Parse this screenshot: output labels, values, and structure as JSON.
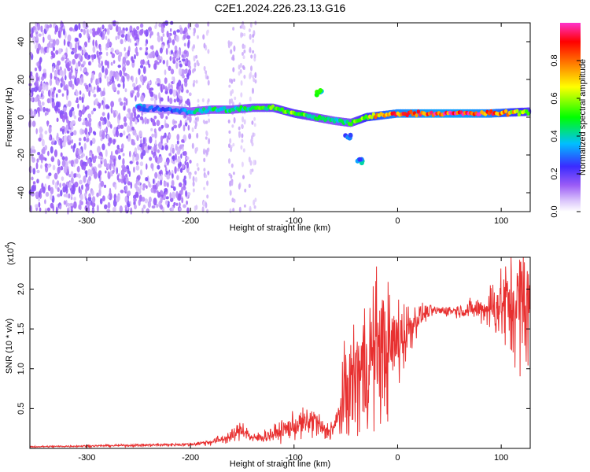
{
  "title": "C2E1.2024.226.23.13.G16",
  "chart_data": [
    {
      "type": "heatmap",
      "xlabel": "Height of straight line (km)",
      "ylabel": "Frequency (Hz)",
      "xlim": [
        -355,
        128
      ],
      "ylim": [
        -50,
        50
      ],
      "x_ticks": [
        -300,
        -200,
        -100,
        0,
        100
      ],
      "y_ticks": [
        -40,
        -20,
        0,
        20,
        40
      ],
      "x_tick_labels": [
        "-300",
        "-200",
        "-100",
        "0",
        "100"
      ],
      "y_tick_labels": [
        "-40",
        "-20",
        "0",
        "20",
        "40"
      ],
      "colorbar": {
        "label": "Normalized spectral amplitude",
        "range": [
          0,
          1
        ],
        "ticks": [
          0.0,
          0.2,
          0.4,
          0.6,
          0.8
        ],
        "tick_labels": [
          "0.0",
          "0.2",
          "0.4",
          "0.6",
          "0.8"
        ],
        "colors": [
          "#ffffff",
          "#9b5cf6",
          "#3a2bff",
          "#00bfff",
          "#00ff00",
          "#ffff00",
          "#ff8000",
          "#ff0000",
          "#ff33cc"
        ]
      },
      "ridge": {
        "x": [
          -250,
          -220,
          -200,
          -180,
          -160,
          -140,
          -120,
          -100,
          -80,
          -60,
          -45,
          -30,
          0,
          30,
          60,
          90,
          128
        ],
        "freq": [
          5,
          4,
          3,
          4,
          4,
          5,
          5,
          2,
          0,
          -2,
          -3,
          0,
          2,
          2,
          2,
          2,
          3
        ],
        "amplitude": [
          0.35,
          0.3,
          0.4,
          0.45,
          0.45,
          0.5,
          0.55,
          0.6,
          0.5,
          0.45,
          0.5,
          0.7,
          0.9,
          0.95,
          0.95,
          0.9,
          0.6
        ]
      },
      "features": [
        {
          "x": -248,
          "freq": 5,
          "amplitude": 0.35
        },
        {
          "x": -75,
          "freq": 13,
          "amplitude": 0.5
        },
        {
          "x": -48,
          "freq": -10,
          "amplitude": 0.35
        },
        {
          "x": -37,
          "freq": -23,
          "amplitude": 0.4
        }
      ],
      "noise_region": {
        "x": [
          -355,
          -200
        ],
        "freq": [
          -50,
          50
        ]
      }
    },
    {
      "type": "line",
      "xlabel": "Height of straight line (km)",
      "ylabel": "SNR (10 * v/v)",
      "multiplier_label": "(x10",
      "multiplier_exp": "4",
      "multiplier_close": ")",
      "xlim": [
        -355,
        128
      ],
      "ylim": [
        0,
        24000
      ],
      "x_ticks": [
        -300,
        -200,
        -100,
        0,
        100
      ],
      "y_ticks": [
        5000,
        10000,
        15000,
        20000
      ],
      "x_tick_labels": [
        "-300",
        "-200",
        "-100",
        "0",
        "100"
      ],
      "y_tick_labels": [
        "0.5",
        "1.0",
        "1.5",
        "2.0"
      ],
      "series": [
        {
          "color": "#e83030",
          "x": [
            -355,
            -300,
            -250,
            -200,
            -180,
            -160,
            -150,
            -140,
            -120,
            -100,
            -80,
            -70,
            -60,
            -50,
            -40,
            -30,
            -20,
            -10,
            0,
            20,
            30,
            40,
            60,
            80,
            100,
            110,
            128
          ],
          "y": [
            200,
            300,
            400,
            500,
            800,
            1500,
            2500,
            1200,
            1800,
            2800,
            3500,
            2000,
            2800,
            7000,
            9000,
            10500,
            13000,
            12000,
            13500,
            16500,
            17200,
            17300,
            17300,
            17500,
            18000,
            18000,
            18500
          ],
          "noise": [
            50,
            60,
            80,
            100,
            200,
            400,
            600,
            300,
            500,
            800,
            1000,
            600,
            800,
            3000,
            4000,
            4500,
            4500,
            4000,
            3000,
            800,
            400,
            300,
            400,
            800,
            2500,
            3500,
            4500
          ]
        }
      ]
    }
  ]
}
